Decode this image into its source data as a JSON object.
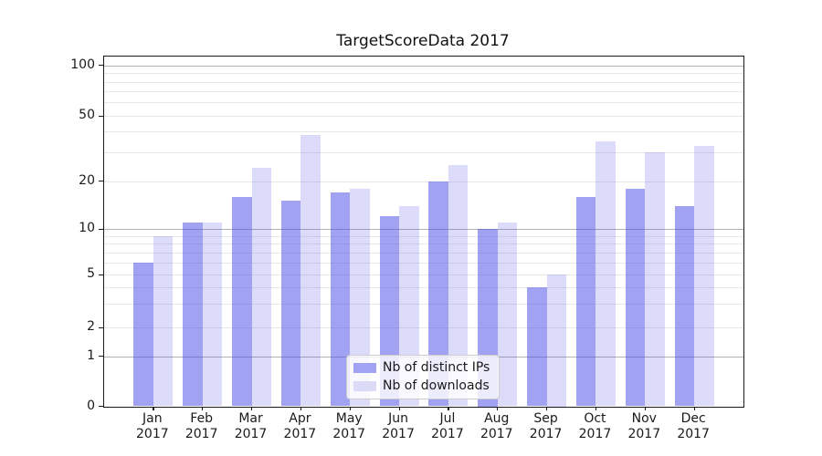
{
  "title": "TargetScoreData 2017",
  "chart_data": {
    "type": "bar",
    "title": "TargetScoreData 2017",
    "months": [
      "Jan",
      "Feb",
      "Mar",
      "Apr",
      "May",
      "Jun",
      "Jul",
      "Aug",
      "Sep",
      "Oct",
      "Nov",
      "Dec"
    ],
    "year": "2017",
    "categories": [
      "Jan 2017",
      "Feb 2017",
      "Mar 2017",
      "Apr 2017",
      "May 2017",
      "Jun 2017",
      "Jul 2017",
      "Aug 2017",
      "Sep 2017",
      "Oct 2017",
      "Nov 2017",
      "Dec 2017"
    ],
    "series": [
      {
        "name": "Nb of distinct IPs",
        "color": "rgba(70,70,230,0.50)",
        "hex_on_white": "#a2a2f2",
        "values": [
          6,
          11,
          16,
          15,
          17,
          12,
          20,
          10,
          4,
          16,
          18,
          14
        ]
      },
      {
        "name": "Nb of downloads",
        "color": "rgba(70,70,230,0.19)",
        "hex_on_white": "#dbdbf8",
        "values": [
          9,
          11,
          24,
          38,
          18,
          14,
          25,
          11,
          5,
          35,
          30,
          33
        ]
      }
    ],
    "y_axis": {
      "scale": "log (with 0 baseline)",
      "tick_labels": [
        "0",
        "1",
        "2",
        "5",
        "10",
        "20",
        "50",
        "100"
      ],
      "ticks": [
        0,
        1,
        2,
        5,
        10,
        20,
        50,
        100
      ],
      "major_gridlines": [
        1,
        10,
        100
      ],
      "minor_gridlines": [
        2,
        3,
        4,
        5,
        6,
        7,
        8,
        9,
        20,
        30,
        40,
        50,
        60,
        70,
        80,
        90
      ],
      "ylim": [
        0,
        112
      ]
    },
    "legend": {
      "position": "lower center",
      "entries": [
        "Nb of distinct IPs",
        "Nb of downloads"
      ]
    },
    "grid": true,
    "colors": {
      "major_grid": "#b2b2b2",
      "minor_grid": "#e8e8e8",
      "spine": "#1a1a1a",
      "text": "#1a1a1a",
      "background": "#ffffff"
    }
  }
}
